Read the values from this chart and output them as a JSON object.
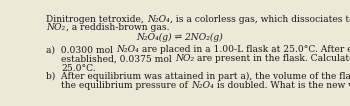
{
  "bg_color": "#ede8d8",
  "text_color": "#1a1a1a",
  "font_size": 6.6,
  "font_family": "DejaVu Serif",
  "line1": "Dinitrogen tetroxide, α, is a colorless gas, which dissociates to give nitrogen dioxide,",
  "line2": "β, a reddish-brown gas.",
  "equation": "N₂O₄(g) ⇌ 2NO₂(g)",
  "line3a": "a)  0.0300 mol γ are placed in a 1.00-L flask at 25.0°C. After equilibrium is",
  "line3b": "     established, 0.0375 mol δ are present in the flask. Calculate the value of K at",
  "line3c": "     25.0°C.",
  "line4a": "b)  After equilibrium was attained in part a), the volume of the flask is changed so that",
  "line4b": "     the equilibrium pressure of ε is doubled. What is the new volume of the flask?",
  "subst": {
    "α": "N₂O₄",
    "β": "NO₂",
    "γ": "N₂O₄",
    "δ": "NO₂",
    "ε": "N₂O₄"
  }
}
